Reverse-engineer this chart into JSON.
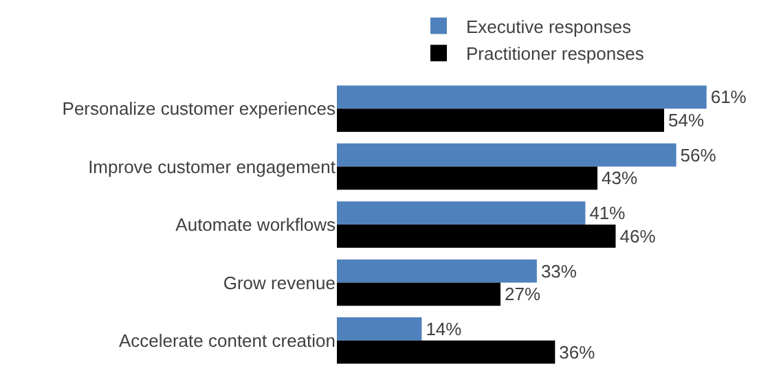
{
  "chart_data": {
    "type": "bar",
    "orientation": "horizontal",
    "categories": [
      "Personalize customer experiences",
      "Improve customer engagement",
      "Automate workflows",
      "Grow revenue",
      "Accelerate content creation"
    ],
    "series": [
      {
        "name": "Executive responses",
        "color": "#4f81bd",
        "values": [
          61,
          56,
          41,
          33,
          14
        ],
        "value_labels": [
          "61%",
          "56%",
          "41%",
          "33%",
          "14%"
        ]
      },
      {
        "name": "Practitioner responses",
        "color": "#000000",
        "values": [
          54,
          43,
          46,
          27,
          36
        ],
        "value_labels": [
          "54%",
          "43%",
          "46%",
          "27%",
          "36%"
        ]
      }
    ],
    "legend": "top",
    "grid": false
  }
}
